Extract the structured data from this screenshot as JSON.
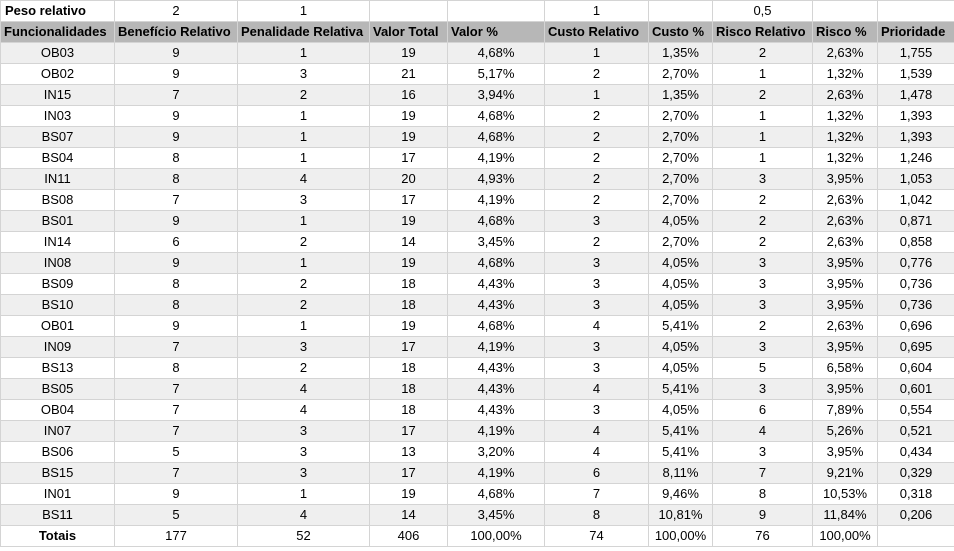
{
  "weights": {
    "label": "Peso relativo",
    "values": [
      "2",
      "1",
      "",
      "",
      "1",
      "",
      "0,5",
      "",
      ""
    ]
  },
  "headers": [
    "Funcionalidades",
    "Benefício Relativo",
    "Penalidade Relativa",
    "Valor Total",
    "Valor %",
    "Custo Relativo",
    "Custo %",
    "Risco Relativo",
    "Risco %",
    "Prioridade"
  ],
  "rows": [
    [
      "OB03",
      "9",
      "1",
      "19",
      "4,68%",
      "1",
      "1,35%",
      "2",
      "2,63%",
      "1,755"
    ],
    [
      "OB02",
      "9",
      "3",
      "21",
      "5,17%",
      "2",
      "2,70%",
      "1",
      "1,32%",
      "1,539"
    ],
    [
      "IN15",
      "7",
      "2",
      "16",
      "3,94%",
      "1",
      "1,35%",
      "2",
      "2,63%",
      "1,478"
    ],
    [
      "IN03",
      "9",
      "1",
      "19",
      "4,68%",
      "2",
      "2,70%",
      "1",
      "1,32%",
      "1,393"
    ],
    [
      "BS07",
      "9",
      "1",
      "19",
      "4,68%",
      "2",
      "2,70%",
      "1",
      "1,32%",
      "1,393"
    ],
    [
      "BS04",
      "8",
      "1",
      "17",
      "4,19%",
      "2",
      "2,70%",
      "1",
      "1,32%",
      "1,246"
    ],
    [
      "IN11",
      "8",
      "4",
      "20",
      "4,93%",
      "2",
      "2,70%",
      "3",
      "3,95%",
      "1,053"
    ],
    [
      "BS08",
      "7",
      "3",
      "17",
      "4,19%",
      "2",
      "2,70%",
      "2",
      "2,63%",
      "1,042"
    ],
    [
      "BS01",
      "9",
      "1",
      "19",
      "4,68%",
      "3",
      "4,05%",
      "2",
      "2,63%",
      "0,871"
    ],
    [
      "IN14",
      "6",
      "2",
      "14",
      "3,45%",
      "2",
      "2,70%",
      "2",
      "2,63%",
      "0,858"
    ],
    [
      "IN08",
      "9",
      "1",
      "19",
      "4,68%",
      "3",
      "4,05%",
      "3",
      "3,95%",
      "0,776"
    ],
    [
      "BS09",
      "8",
      "2",
      "18",
      "4,43%",
      "3",
      "4,05%",
      "3",
      "3,95%",
      "0,736"
    ],
    [
      "BS10",
      "8",
      "2",
      "18",
      "4,43%",
      "3",
      "4,05%",
      "3",
      "3,95%",
      "0,736"
    ],
    [
      "OB01",
      "9",
      "1",
      "19",
      "4,68%",
      "4",
      "5,41%",
      "2",
      "2,63%",
      "0,696"
    ],
    [
      "IN09",
      "7",
      "3",
      "17",
      "4,19%",
      "3",
      "4,05%",
      "3",
      "3,95%",
      "0,695"
    ],
    [
      "BS13",
      "8",
      "2",
      "18",
      "4,43%",
      "3",
      "4,05%",
      "5",
      "6,58%",
      "0,604"
    ],
    [
      "BS05",
      "7",
      "4",
      "18",
      "4,43%",
      "4",
      "5,41%",
      "3",
      "3,95%",
      "0,601"
    ],
    [
      "OB04",
      "7",
      "4",
      "18",
      "4,43%",
      "3",
      "4,05%",
      "6",
      "7,89%",
      "0,554"
    ],
    [
      "IN07",
      "7",
      "3",
      "17",
      "4,19%",
      "4",
      "5,41%",
      "4",
      "5,26%",
      "0,521"
    ],
    [
      "BS06",
      "5",
      "3",
      "13",
      "3,20%",
      "4",
      "5,41%",
      "3",
      "3,95%",
      "0,434"
    ],
    [
      "BS15",
      "7",
      "3",
      "17",
      "4,19%",
      "6",
      "8,11%",
      "7",
      "9,21%",
      "0,329"
    ],
    [
      "IN01",
      "9",
      "1",
      "19",
      "4,68%",
      "7",
      "9,46%",
      "8",
      "10,53%",
      "0,318"
    ],
    [
      "BS11",
      "5",
      "4",
      "14",
      "3,45%",
      "8",
      "10,81%",
      "9",
      "11,84%",
      "0,206"
    ]
  ],
  "totals": {
    "label": "Totais",
    "values": [
      "177",
      "52",
      "406",
      "100,00%",
      "74",
      "100,00%",
      "76",
      "100,00%",
      ""
    ]
  },
  "colors": {
    "header_bg": "#b7b7b7",
    "row_alt_bg": "#efefef",
    "grid_line": "#d4d4d4"
  }
}
